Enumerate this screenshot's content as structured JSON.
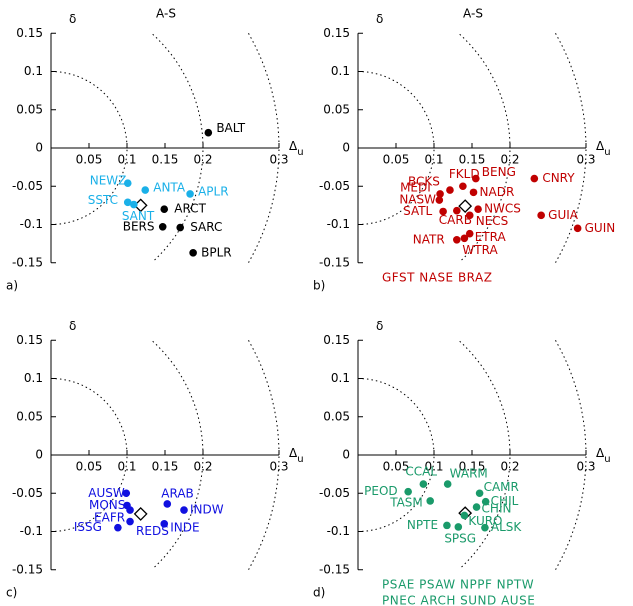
{
  "chart_data": [
    {
      "type": "scatter",
      "title": "A-S",
      "panel_label": "a)",
      "y_label": "δ",
      "x_label": "Δ",
      "x_label_sub": "u",
      "xlim": [
        0,
        0.3
      ],
      "ylim": [
        -0.15,
        0.15
      ],
      "xticks": [
        0.05,
        0.1,
        0.15,
        0.2,
        0.3
      ],
      "yticks": [
        0.15,
        0.1,
        0.05,
        0,
        -0.05,
        -0.1,
        -0.15
      ],
      "circles": [
        0.1,
        0.2,
        0.3
      ],
      "reference": {
        "x": 0.118,
        "y": -0.075
      },
      "series": [
        {
          "color": "#1ab0e8",
          "labels": [
            "NEWZ",
            "ANTA",
            "APLR",
            "SSTC",
            "SANT"
          ],
          "x": [
            0.101,
            0.124,
            0.183,
            0.101,
            0.109
          ],
          "y": [
            -0.046,
            -0.055,
            -0.06,
            -0.071,
            -0.074
          ]
        },
        {
          "color": "#000000",
          "labels": [
            "BALT",
            "ARCT",
            "BERS",
            "SARC",
            "BPLR"
          ],
          "x": [
            0.207,
            0.149,
            0.147,
            0.17,
            0.187
          ],
          "y": [
            0.02,
            -0.08,
            -0.103,
            -0.104,
            -0.137
          ]
        }
      ]
    },
    {
      "type": "scatter",
      "title": "A-S",
      "panel_label": "b)",
      "y_label": "δ",
      "x_label": "Δ",
      "x_label_sub": "u",
      "xlim": [
        0,
        0.3
      ],
      "ylim": [
        -0.15,
        0.15
      ],
      "xticks": [
        0.05,
        0.1,
        0.15,
        0.2,
        0.3
      ],
      "yticks": [
        0.15,
        0.1,
        0.05,
        0,
        -0.05,
        -0.1,
        -0.15
      ],
      "circles": [
        0.1,
        0.2,
        0.3
      ],
      "reference": {
        "x": 0.141,
        "y": -0.076
      },
      "series": [
        {
          "color": "#c00000",
          "labels": [
            "CNRY",
            "BENG",
            "FKLD",
            "BCKS",
            "MEDI",
            "NASW",
            "SATL",
            "NADR",
            "NWCS",
            "NECS",
            "CARB",
            "ETRA",
            "WTRA",
            "NATR",
            "GUIA",
            "GUIN"
          ],
          "x": [
            0.232,
            0.155,
            0.138,
            0.121,
            0.108,
            0.107,
            0.112,
            0.152,
            0.158,
            0.147,
            0.13,
            0.147,
            0.14,
            0.13,
            0.241,
            0.289
          ],
          "y": [
            -0.04,
            -0.04,
            -0.05,
            -0.055,
            -0.06,
            -0.068,
            -0.083,
            -0.058,
            -0.08,
            -0.088,
            -0.082,
            -0.112,
            -0.118,
            -0.12,
            -0.088,
            -0.105
          ]
        }
      ],
      "unplotted": [
        "GFST NASE BRAZ"
      ]
    },
    {
      "type": "scatter",
      "panel_label": "c)",
      "y_label": "δ",
      "x_label": "Δ",
      "x_label_sub": "u",
      "xlim": [
        0,
        0.3
      ],
      "ylim": [
        -0.15,
        0.15
      ],
      "xticks": [
        0.05,
        0.1,
        0.15,
        0.2,
        0.3
      ],
      "yticks": [
        0.15,
        0.1,
        0.05,
        0,
        -0.05,
        -0.1,
        -0.15
      ],
      "circles": [
        0.1,
        0.2,
        0.3
      ],
      "reference": {
        "x": 0.118,
        "y": -0.077
      },
      "series": [
        {
          "color": "#1010e0",
          "labels": [
            "AUSW",
            "MONS",
            "EAFR",
            "ISSG",
            "REDS",
            "ARAB",
            "INDW",
            "INDE"
          ],
          "x": [
            0.099,
            0.1,
            0.104,
            0.088,
            0.104,
            0.153,
            0.175,
            0.149
          ],
          "y": [
            -0.05,
            -0.066,
            -0.072,
            -0.095,
            -0.087,
            -0.064,
            -0.072,
            -0.09
          ]
        }
      ]
    },
    {
      "type": "scatter",
      "panel_label": "d)",
      "y_label": "δ",
      "x_label": "Δ",
      "x_label_sub": "u",
      "xlim": [
        0,
        0.3
      ],
      "ylim": [
        -0.15,
        0.15
      ],
      "xticks": [
        0.05,
        0.1,
        0.15,
        0.2,
        0.3
      ],
      "yticks": [
        0.15,
        0.1,
        0.05,
        0,
        -0.05,
        -0.1,
        -0.15
      ],
      "circles": [
        0.1,
        0.2,
        0.3
      ],
      "reference": {
        "x": 0.141,
        "y": -0.076
      },
      "series": [
        {
          "color": "#1a9a6a",
          "labels": [
            "PEOD",
            "CCAL",
            "WARM",
            "CAMR",
            "CHIL",
            "CHIN",
            "TASM",
            "KURO",
            "NPTE",
            "SPSG",
            "ALSK"
          ],
          "x": [
            0.066,
            0.086,
            0.118,
            0.16,
            0.168,
            0.156,
            0.095,
            0.14,
            0.117,
            0.132,
            0.167
          ],
          "y": [
            -0.048,
            -0.038,
            -0.038,
            -0.05,
            -0.061,
            -0.068,
            -0.06,
            -0.079,
            -0.092,
            -0.094,
            -0.095
          ]
        }
      ],
      "unplotted": [
        "PSAE PSAW NPPF NPTW",
        "PNEC ARCH SUND AUSE"
      ]
    }
  ]
}
